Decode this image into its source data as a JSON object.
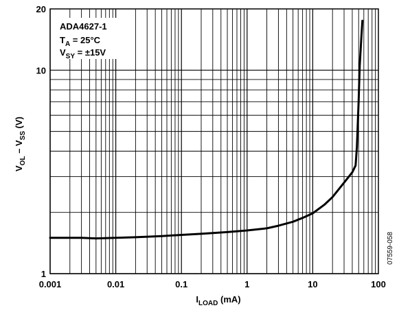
{
  "chart_data": {
    "type": "line",
    "x_scale": "log",
    "y_scale": "log",
    "xlim": [
      0.001,
      100
    ],
    "ylim": [
      1,
      20
    ],
    "grid": true,
    "x_ticks": [
      "0.001",
      "0.01",
      "0.1",
      "1",
      "10",
      "100"
    ],
    "y_ticks": [
      "1",
      "10",
      "20"
    ],
    "xlabel": {
      "main": "I",
      "sub": "LOAD",
      "unit": " (mA)"
    },
    "ylabel": {
      "p1": "V",
      "s1": "OL",
      "p2": " – V",
      "s2": "SS",
      "p3": " (V)"
    },
    "annotation": {
      "line1": "ADA4627-1",
      "line2_main": "T",
      "line2_sub": "A",
      "line2_rest": " = 25°C",
      "line3_main": "V",
      "line3_sub": "SY",
      "line3_rest": " = ±15V"
    },
    "figure_id": "07559-058",
    "series": [
      {
        "color": "#000000",
        "x": [
          0.001,
          0.003,
          0.005,
          0.01,
          0.02,
          0.05,
          0.1,
          0.2,
          0.5,
          1,
          2,
          3,
          5,
          7,
          10,
          15,
          20,
          30,
          40,
          45,
          47,
          50,
          52,
          55,
          57
        ],
        "y": [
          1.5,
          1.5,
          1.49,
          1.5,
          1.51,
          1.53,
          1.55,
          1.57,
          1.6,
          1.63,
          1.67,
          1.72,
          1.8,
          1.88,
          1.98,
          2.18,
          2.38,
          2.8,
          3.15,
          3.4,
          4.2,
          7.0,
          10.5,
          14.5,
          17.5
        ]
      }
    ]
  }
}
